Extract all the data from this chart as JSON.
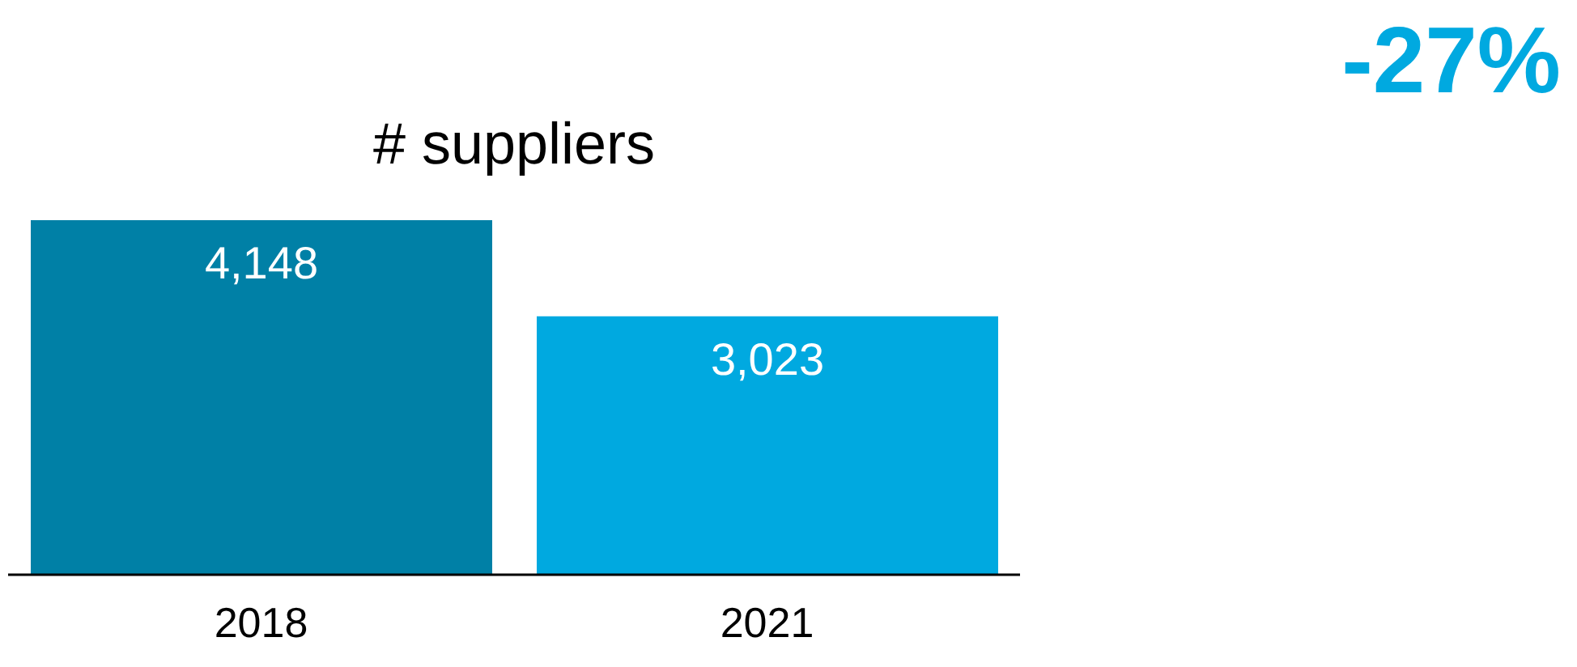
{
  "chart_data": {
    "type": "bar",
    "title": "# suppliers",
    "categories": [
      "2018",
      "2021"
    ],
    "values": [
      4148,
      3023
    ],
    "colors": [
      "#0080a6",
      "#00a9e0"
    ],
    "value_labels": [
      "4,148",
      "3,023"
    ],
    "annotations": [
      "-27%"
    ]
  }
}
